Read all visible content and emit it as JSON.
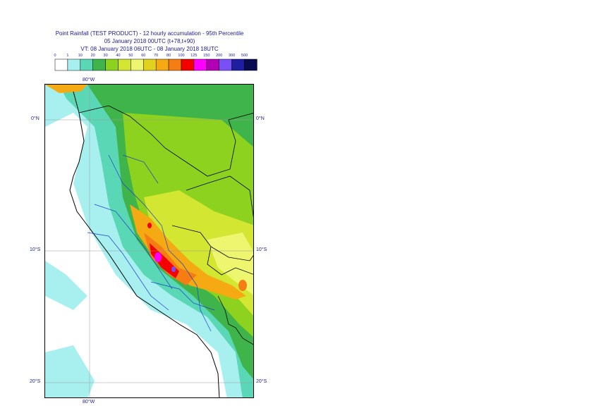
{
  "title": {
    "line1": "Point Rainfall (TEST PRODUCT) - 12 hourly accumulation - 95th Percentile",
    "line2": "05 January 2018 00UTC (t+78,t+90)",
    "line3": "VT: 08 January 2018 06UTC - 08 January 2018 18UTC"
  },
  "legend": {
    "ticks": [
      "0",
      "1",
      "10",
      "20",
      "30",
      "40",
      "50",
      "60",
      "70",
      "80",
      "100",
      "125",
      "150",
      "200",
      "300",
      "500"
    ],
    "colors": [
      "#ffffff",
      "#a8f0f0",
      "#5ad7b4",
      "#3fb44a",
      "#8cd21e",
      "#d2e632",
      "#eef56e",
      "#e1d21e",
      "#f5aa14",
      "#f57d14",
      "#f50000",
      "#ff00ff",
      "#b400b4",
      "#7850f5",
      "#1e1ea0",
      "#0a0a50"
    ]
  },
  "map": {
    "lon_label_top": "80°W",
    "lon_label_bottom": "80°W",
    "lat_labels_left": [
      "0°N",
      "10°S",
      "20°S"
    ],
    "lat_labels_right": [
      "0°N",
      "10°S",
      "20°S"
    ]
  }
}
